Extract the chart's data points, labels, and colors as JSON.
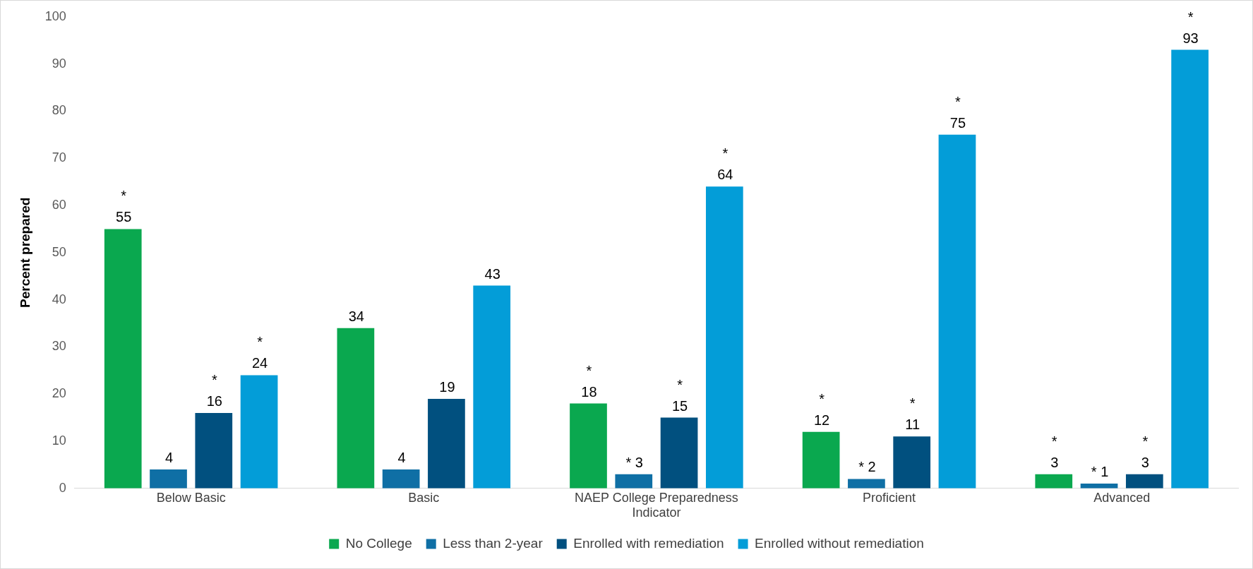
{
  "chart_data": {
    "type": "bar",
    "ylabel": "Percent prepared",
    "categories": [
      "Below Basic",
      "Basic",
      "NAEP College Preparedness Indicator",
      "Proficient",
      "Advanced"
    ],
    "series": [
      {
        "name": "No College",
        "color": "#0aa84f",
        "values": [
          55,
          34,
          18,
          12,
          3
        ],
        "value_labels": [
          "*\n55",
          "34",
          "*\n18",
          "*\n12",
          "*\n3"
        ]
      },
      {
        "name": "Less than 2-year",
        "color": "#0f6fa5",
        "values": [
          4,
          4,
          3,
          2,
          1
        ],
        "value_labels": [
          "4",
          "4",
          "* 3",
          "* 2",
          "* 1"
        ]
      },
      {
        "name": "Enrolled with remediation",
        "color": "#01507f",
        "values": [
          16,
          19,
          15,
          11,
          3
        ],
        "value_labels": [
          "*\n16",
          "19",
          "*\n15",
          "*\n11",
          "*\n3"
        ]
      },
      {
        "name": "Enrolled without remediation",
        "color": "#039dd8",
        "values": [
          24,
          43,
          64,
          75,
          93
        ],
        "value_labels": [
          "*\n24",
          "43",
          "*\n64",
          "*\n75",
          "*\n93"
        ]
      }
    ],
    "ylim": [
      0,
      100
    ],
    "yticks": [
      0,
      10,
      20,
      30,
      40,
      50,
      60,
      70,
      80,
      90,
      100
    ],
    "grid": false,
    "legend": "bottom"
  }
}
